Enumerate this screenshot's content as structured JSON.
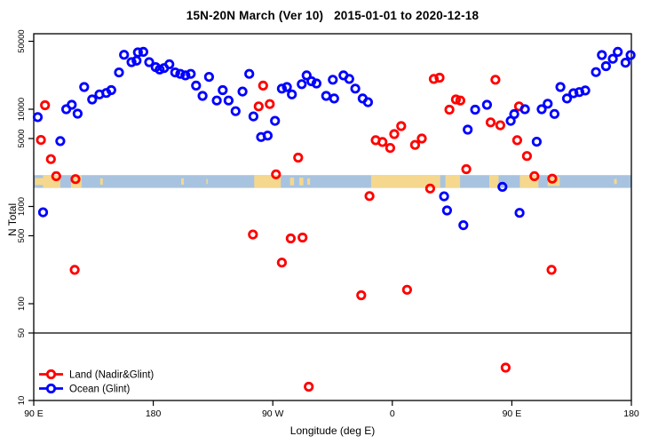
{
  "chart_data": {
    "type": "scatter",
    "title": "15N-20N March (Ver 10)   2015-01-01 to 2020-12-18",
    "xlabel": "Longitude (deg E)",
    "ylabel": "N Total",
    "x_axis": {
      "min": 90,
      "max": 540,
      "unit": "deg E (wrapping eastward past 180)",
      "ticks": [
        {
          "lon": 90,
          "label": "90 E"
        },
        {
          "lon": 180,
          "label": "180"
        },
        {
          "lon": 270,
          "label": "90 W"
        },
        {
          "lon": 360,
          "label": "0"
        },
        {
          "lon": 450,
          "label": "90 E"
        },
        {
          "lon": 540,
          "label": "180"
        }
      ]
    },
    "y_axis": {
      "scale": "log",
      "min": 9,
      "max": 56000,
      "ticks": [
        10,
        50,
        100,
        500,
        1000,
        5000,
        10000,
        50000
      ]
    },
    "reference_line_n": 50,
    "map_strip": {
      "description": "land/ocean strip across all longitudes",
      "n_range": [
        1550,
        2100
      ],
      "ocean_color": "#A8C3DF",
      "land_color": "#F5D88E",
      "land_patches_lon": [
        [
          91,
          97,
          0.55
        ],
        [
          97,
          110,
          1
        ],
        [
          118,
          126,
          1
        ],
        [
          140,
          142,
          0.5
        ],
        [
          201,
          203,
          0.5
        ],
        [
          220,
          221,
          0.4
        ],
        [
          256,
          276,
          1
        ],
        [
          283,
          286,
          0.6
        ],
        [
          290,
          293,
          0.6
        ],
        [
          296,
          298,
          0.5
        ],
        [
          344,
          396,
          1
        ],
        [
          400,
          411,
          1
        ],
        [
          433,
          440,
          1
        ],
        [
          456,
          470,
          1
        ],
        [
          477,
          486,
          0.7
        ],
        [
          527,
          529,
          0.4
        ]
      ]
    },
    "legend": {
      "position": "bottom-left",
      "entries": [
        "Land (Nadir&Glint)",
        "Ocean (Glint)"
      ]
    },
    "series": [
      {
        "name": "Land (Nadir&Glint)",
        "color": "#FF0000",
        "marker": "open-circle",
        "points": [
          [
            98.5,
            11000
          ],
          [
            95.4,
            4830
          ],
          [
            102.9,
            3070
          ],
          [
            106.9,
            2050
          ],
          [
            121.4,
            1910
          ],
          [
            120.8,
            223
          ],
          [
            262.7,
            17500
          ],
          [
            259.4,
            10700
          ],
          [
            267.7,
            11300
          ],
          [
            272.4,
            2140
          ],
          [
            289.1,
            3180
          ],
          [
            255,
            514
          ],
          [
            283.5,
            469
          ],
          [
            292.4,
            479
          ],
          [
            276.8,
            265
          ],
          [
            297.1,
            14
          ],
          [
            347.5,
            4800
          ],
          [
            352.6,
            4600
          ],
          [
            358.4,
            4000
          ],
          [
            361.5,
            5550
          ],
          [
            366.7,
            6700
          ],
          [
            377.1,
            4290
          ],
          [
            382.2,
            5000
          ],
          [
            391.2,
            20500
          ],
          [
            395.6,
            21100
          ],
          [
            403,
            9900
          ],
          [
            407.9,
            12600
          ],
          [
            411.2,
            12300
          ],
          [
            434,
            7330
          ],
          [
            437.6,
            20100
          ],
          [
            441.3,
            6840
          ],
          [
            455.4,
            10700
          ],
          [
            454,
            4800
          ],
          [
            461.4,
            3300
          ],
          [
            467,
            2050
          ],
          [
            480.4,
            1930
          ],
          [
            388.5,
            1530
          ],
          [
            342.8,
            1280
          ],
          [
            479.9,
            223
          ],
          [
            371.1,
            139
          ],
          [
            336.6,
            122
          ],
          [
            415.7,
            2420
          ],
          [
            445.3,
            22
          ]
        ]
      },
      {
        "name": "Ocean (Glint)",
        "color": "#0000FF",
        "marker": "open-circle",
        "points": [
          [
            93,
            8300
          ],
          [
            97,
            870
          ],
          [
            114.5,
            10000
          ],
          [
            118.6,
            11100
          ],
          [
            123,
            9000
          ],
          [
            110,
            4700
          ],
          [
            128,
            16900
          ],
          [
            134,
            12600
          ],
          [
            139.5,
            14200
          ],
          [
            144.6,
            14700
          ],
          [
            148.4,
            15700
          ],
          [
            154.2,
            23900
          ],
          [
            158,
            36300
          ],
          [
            163.6,
            30500
          ],
          [
            167.4,
            31600
          ],
          [
            168.4,
            38400
          ],
          [
            172.5,
            38900
          ],
          [
            176.9,
            30500
          ],
          [
            181.8,
            27100
          ],
          [
            184.8,
            25600
          ],
          [
            188.1,
            26500
          ],
          [
            192.1,
            29000
          ],
          [
            196.5,
            23900
          ],
          [
            200.3,
            23100
          ],
          [
            204.2,
            22300
          ],
          [
            208.2,
            23100
          ],
          [
            212.2,
            17500
          ],
          [
            217.1,
            13700
          ],
          [
            222,
            21500
          ],
          [
            227.8,
            12300
          ],
          [
            232.3,
            15700
          ],
          [
            236.7,
            12300
          ],
          [
            242,
            9550
          ],
          [
            247.2,
            15200
          ],
          [
            252.3,
            23100
          ],
          [
            255.4,
            8430
          ],
          [
            261.2,
            5180
          ],
          [
            266.1,
            5360
          ],
          [
            271.7,
            7590
          ],
          [
            276.8,
            16300
          ],
          [
            280.6,
            16900
          ],
          [
            284.4,
            14200
          ],
          [
            291.8,
            18100
          ],
          [
            295.5,
            22300
          ],
          [
            299.1,
            19400
          ],
          [
            302.9,
            18400
          ],
          [
            310.2,
            13700
          ],
          [
            315.2,
            20100
          ],
          [
            316.2,
            12900
          ],
          [
            323.2,
            22300
          ],
          [
            327.6,
            20500
          ],
          [
            332.1,
            16300
          ],
          [
            337.7,
            12900
          ],
          [
            341.7,
            11800
          ],
          [
            422.4,
            9900
          ],
          [
            416.8,
            6170
          ],
          [
            431.3,
            11100
          ],
          [
            399,
            1270
          ],
          [
            401.2,
            910
          ],
          [
            413.5,
            641
          ],
          [
            442.9,
            1590
          ],
          [
            455.8,
            860
          ],
          [
            449.1,
            7590
          ],
          [
            451.8,
            8910
          ],
          [
            459.8,
            10000
          ],
          [
            468.7,
            4630
          ],
          [
            472.5,
            10000
          ],
          [
            477,
            11400
          ],
          [
            482.1,
            8950
          ],
          [
            486.6,
            16900
          ],
          [
            491.5,
            12900
          ],
          [
            496.4,
            14600
          ],
          [
            500.8,
            15000
          ],
          [
            505.3,
            15600
          ],
          [
            513.3,
            24100
          ],
          [
            517.8,
            36100
          ],
          [
            520.9,
            27700
          ],
          [
            526,
            33000
          ],
          [
            529.8,
            38900
          ],
          [
            535.6,
            30100
          ],
          [
            539.4,
            36000
          ]
        ]
      }
    ]
  }
}
